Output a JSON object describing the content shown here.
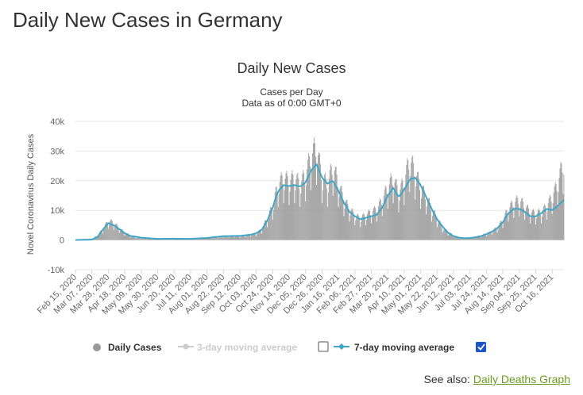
{
  "page": {
    "title": "Daily New Cases in Germany",
    "see_also_label": "See also:",
    "see_also_link": "Daily Deaths Graph"
  },
  "colors": {
    "bars": "#999999",
    "avg7": "#3fa6c7",
    "grid": "#e6e6e6",
    "link": "#6b9b1e",
    "checkbox_checked": "#1a56c9"
  },
  "chart_data": {
    "type": "bar",
    "title": "Daily New Cases",
    "subtitle_lines": [
      "Cases per Day",
      "Data as of 0:00 GMT+0"
    ],
    "ylabel": "Novel Coronavirus Daily Cases",
    "xlabel": "",
    "ylim": [
      -10000,
      40000
    ],
    "ytick_values": [
      -10000,
      0,
      10000,
      20000,
      30000,
      40000
    ],
    "ytick_labels": [
      "-10k",
      "0",
      "10k",
      "20k",
      "30k",
      "40k"
    ],
    "grid": true,
    "x_start": "2020-02-15",
    "x_end": "2021-10-31",
    "xtick_labels": [
      "Feb 15, 2020",
      "Mar 07, 2020",
      "Mar 28, 2020",
      "Apr 18, 2020",
      "May 09, 2020",
      "May 30, 2020",
      "Jun 20, 2020",
      "Jul 11, 2020",
      "Aug 01, 2020",
      "Aug 22, 2020",
      "Sep 12, 2020",
      "Oct 03, 2020",
      "Oct 24, 2020",
      "Nov 14, 2020",
      "Dec 05, 2020",
      "Dec 26, 2020",
      "Jan 16, 2021",
      "Feb 06, 2021",
      "Feb 27, 2021",
      "Mar 20, 2021",
      "Apr 10, 2021",
      "May 01, 2021",
      "May 22, 2021",
      "Jun 12, 2021",
      "Jul 03, 2021",
      "Jul 24, 2021",
      "Aug 14, 2021",
      "Sep 04, 2021",
      "Sep 25, 2021",
      "Oct 16, 2021"
    ],
    "series": [
      {
        "name": "Daily Cases",
        "kind": "bars",
        "visible": true,
        "points": [
          [
            "2020-02-15",
            0
          ],
          [
            "2020-03-01",
            50
          ],
          [
            "2020-03-07",
            200
          ],
          [
            "2020-03-14",
            1500
          ],
          [
            "2020-03-21",
            3500
          ],
          [
            "2020-03-28",
            6200
          ],
          [
            "2020-04-04",
            5500
          ],
          [
            "2020-04-11",
            3800
          ],
          [
            "2020-04-18",
            2400
          ],
          [
            "2020-04-25",
            1400
          ],
          [
            "2020-05-02",
            900
          ],
          [
            "2020-05-16",
            500
          ],
          [
            "2020-05-30",
            350
          ],
          [
            "2020-06-20",
            450
          ],
          [
            "2020-07-11",
            350
          ],
          [
            "2020-08-01",
            700
          ],
          [
            "2020-08-22",
            1300
          ],
          [
            "2020-09-12",
            1300
          ],
          [
            "2020-09-26",
            1800
          ],
          [
            "2020-10-03",
            2100
          ],
          [
            "2020-10-10",
            3500
          ],
          [
            "2020-10-17",
            7000
          ],
          [
            "2020-10-24",
            11000
          ],
          [
            "2020-10-31",
            18000
          ],
          [
            "2020-11-07",
            20000
          ],
          [
            "2020-11-14",
            19000
          ],
          [
            "2020-11-21",
            20000
          ],
          [
            "2020-11-28",
            18000
          ],
          [
            "2020-12-05",
            21000
          ],
          [
            "2020-12-12",
            27000
          ],
          [
            "2020-12-19",
            30000
          ],
          [
            "2020-12-26",
            20000
          ],
          [
            "2021-01-02",
            18000
          ],
          [
            "2021-01-09",
            24000
          ],
          [
            "2021-01-16",
            18000
          ],
          [
            "2021-01-23",
            13000
          ],
          [
            "2021-01-30",
            10000
          ],
          [
            "2021-02-06",
            8000
          ],
          [
            "2021-02-13",
            7000
          ],
          [
            "2021-02-20",
            8000
          ],
          [
            "2021-02-27",
            9000
          ],
          [
            "2021-03-06",
            10000
          ],
          [
            "2021-03-13",
            13000
          ],
          [
            "2021-03-20",
            17000
          ],
          [
            "2021-03-27",
            20000
          ],
          [
            "2021-04-03",
            15000
          ],
          [
            "2021-04-10",
            19000
          ],
          [
            "2021-04-17",
            26000
          ],
          [
            "2021-04-24",
            22000
          ],
          [
            "2021-05-01",
            17000
          ],
          [
            "2021-05-08",
            14000
          ],
          [
            "2021-05-15",
            10000
          ],
          [
            "2021-05-22",
            7000
          ],
          [
            "2021-05-29",
            4000
          ],
          [
            "2021-06-05",
            2500
          ],
          [
            "2021-06-12",
            1500
          ],
          [
            "2021-06-19",
            800
          ],
          [
            "2021-06-26",
            700
          ],
          [
            "2021-07-03",
            800
          ],
          [
            "2021-07-10",
            1000
          ],
          [
            "2021-07-17",
            1500
          ],
          [
            "2021-07-24",
            2000
          ],
          [
            "2021-07-31",
            2800
          ],
          [
            "2021-08-07",
            4000
          ],
          [
            "2021-08-14",
            6500
          ],
          [
            "2021-08-21",
            10000
          ],
          [
            "2021-08-28",
            12000
          ],
          [
            "2021-09-04",
            13000
          ],
          [
            "2021-09-11",
            11000
          ],
          [
            "2021-09-18",
            9000
          ],
          [
            "2021-09-25",
            8500
          ],
          [
            "2021-10-02",
            9000
          ],
          [
            "2021-10-09",
            11000
          ],
          [
            "2021-10-16",
            14000
          ],
          [
            "2021-10-23",
            18000
          ],
          [
            "2021-10-31",
            26000
          ]
        ]
      },
      {
        "name": "3-day moving average",
        "kind": "line",
        "visible": false
      },
      {
        "name": "7-day moving average",
        "kind": "line",
        "visible": true,
        "points": [
          [
            "2020-02-15",
            0
          ],
          [
            "2020-03-07",
            150
          ],
          [
            "2020-03-14",
            1000
          ],
          [
            "2020-03-21",
            3500
          ],
          [
            "2020-03-28",
            5700
          ],
          [
            "2020-04-04",
            5000
          ],
          [
            "2020-04-11",
            3700
          ],
          [
            "2020-04-18",
            2300
          ],
          [
            "2020-04-25",
            1400
          ],
          [
            "2020-05-09",
            800
          ],
          [
            "2020-05-30",
            400
          ],
          [
            "2020-06-20",
            450
          ],
          [
            "2020-07-11",
            400
          ],
          [
            "2020-08-01",
            700
          ],
          [
            "2020-08-22",
            1300
          ],
          [
            "2020-09-12",
            1400
          ],
          [
            "2020-09-26",
            1800
          ],
          [
            "2020-10-03",
            2300
          ],
          [
            "2020-10-10",
            3500
          ],
          [
            "2020-10-17",
            6500
          ],
          [
            "2020-10-24",
            11000
          ],
          [
            "2020-10-31",
            16500
          ],
          [
            "2020-11-07",
            18500
          ],
          [
            "2020-11-14",
            18200
          ],
          [
            "2020-11-21",
            18500
          ],
          [
            "2020-11-28",
            18000
          ],
          [
            "2020-12-05",
            19500
          ],
          [
            "2020-12-12",
            23500
          ],
          [
            "2020-12-19",
            25500
          ],
          [
            "2020-12-26",
            21000
          ],
          [
            "2021-01-02",
            19000
          ],
          [
            "2021-01-09",
            20000
          ],
          [
            "2021-01-16",
            16500
          ],
          [
            "2021-01-23",
            12500
          ],
          [
            "2021-01-30",
            9500
          ],
          [
            "2021-02-06",
            8000
          ],
          [
            "2021-02-13",
            7000
          ],
          [
            "2021-02-20",
            7500
          ],
          [
            "2021-02-27",
            8000
          ],
          [
            "2021-03-06",
            8500
          ],
          [
            "2021-03-13",
            11000
          ],
          [
            "2021-03-20",
            15000
          ],
          [
            "2021-03-27",
            17500
          ],
          [
            "2021-04-03",
            14500
          ],
          [
            "2021-04-10",
            17000
          ],
          [
            "2021-04-17",
            20500
          ],
          [
            "2021-04-24",
            21000
          ],
          [
            "2021-05-01",
            18500
          ],
          [
            "2021-05-08",
            14500
          ],
          [
            "2021-05-15",
            10500
          ],
          [
            "2021-05-22",
            7000
          ],
          [
            "2021-05-29",
            4500
          ],
          [
            "2021-06-05",
            2500
          ],
          [
            "2021-06-12",
            1300
          ],
          [
            "2021-06-19",
            800
          ],
          [
            "2021-06-26",
            600
          ],
          [
            "2021-07-03",
            700
          ],
          [
            "2021-07-10",
            900
          ],
          [
            "2021-07-17",
            1300
          ],
          [
            "2021-07-24",
            2000
          ],
          [
            "2021-07-31",
            2800
          ],
          [
            "2021-08-07",
            4000
          ],
          [
            "2021-08-14",
            6000
          ],
          [
            "2021-08-21",
            9000
          ],
          [
            "2021-08-28",
            10500
          ],
          [
            "2021-09-04",
            10500
          ],
          [
            "2021-09-11",
            9500
          ],
          [
            "2021-09-18",
            8000
          ],
          [
            "2021-09-25",
            8000
          ],
          [
            "2021-10-02",
            9000
          ],
          [
            "2021-10-09",
            10500
          ],
          [
            "2021-10-16",
            10000
          ],
          [
            "2021-10-23",
            11500
          ],
          [
            "2021-10-31",
            13500
          ]
        ]
      }
    ]
  },
  "legend": {
    "daily_label": "Daily Cases",
    "avg3_label": "3-day moving average",
    "avg3_checked": false,
    "avg7_label": "7-day moving average",
    "avg7_checked": true
  }
}
